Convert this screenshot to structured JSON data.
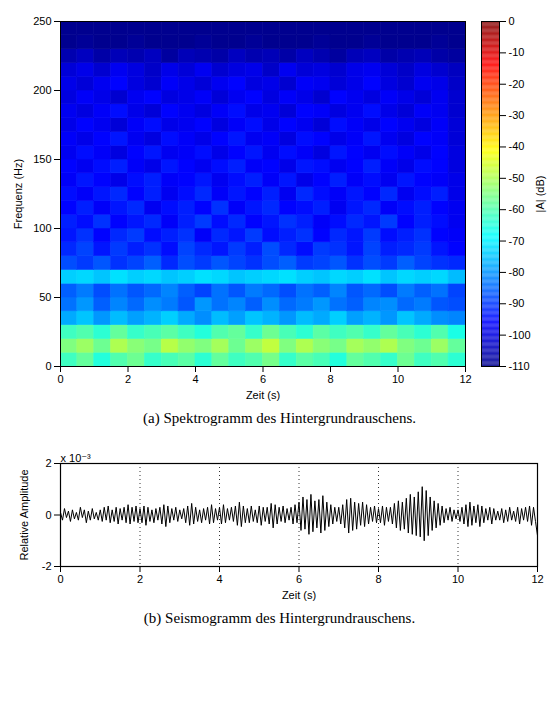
{
  "chart_data": [
    {
      "type": "heatmap",
      "title": "(a) Spektrogramm des Hintergrundrauschens.",
      "x_label": "Zeit (s)",
      "y_label": "Frequenz (Hz)",
      "xlim": [
        0,
        12
      ],
      "xticks": [
        0,
        2,
        4,
        6,
        8,
        10,
        12
      ],
      "ylim": [
        0,
        250
      ],
      "yticks": [
        0,
        50,
        100,
        150,
        200,
        250
      ],
      "x_bins": [
        0,
        0.5,
        1,
        1.5,
        2,
        2.5,
        3,
        3.5,
        4,
        4.5,
        5,
        5.5,
        6,
        6.5,
        7,
        7.5,
        8,
        8.5,
        9,
        9.5,
        10,
        10.5,
        11,
        11.5,
        12
      ],
      "y_bins": [
        0,
        10,
        20,
        30,
        40,
        50,
        60,
        70,
        80,
        90,
        100,
        110,
        120,
        130,
        140,
        150,
        160,
        170,
        180,
        190,
        200,
        210,
        220,
        230,
        240,
        250
      ],
      "cells": [
        [
          -62,
          -58,
          -65,
          -60,
          -57,
          -63,
          -61,
          -59,
          -64,
          -58,
          -62,
          -60,
          -56,
          -63,
          -59,
          -61,
          -65,
          -58,
          -60,
          -63,
          -57,
          -62,
          -60,
          -64
        ],
        [
          -55,
          -52,
          -57,
          -50,
          -54,
          -56,
          -49,
          -53,
          -55,
          -51,
          -57,
          -52,
          -48,
          -55,
          -50,
          -54,
          -56,
          -51,
          -53,
          -50,
          -55,
          -57,
          -52,
          -58
        ],
        [
          -62,
          -60,
          -64,
          -58,
          -63,
          -61,
          -59,
          -62,
          -65,
          -60,
          -58,
          -63,
          -57,
          -61,
          -64,
          -59,
          -62,
          -60,
          -63,
          -58,
          -61,
          -64,
          -60,
          -66
        ],
        [
          -78,
          -75,
          -80,
          -76,
          -79,
          -77,
          -74,
          -78,
          -81,
          -76,
          -79,
          -75,
          -77,
          -80,
          -76,
          -78,
          -74,
          -79,
          -77,
          -80,
          -75,
          -78,
          -81,
          -82
        ],
        [
          -84,
          -80,
          -86,
          -82,
          -85,
          -81,
          -83,
          -87,
          -80,
          -84,
          -82,
          -86,
          -81,
          -85,
          -83,
          -80,
          -84,
          -86,
          -82,
          -81,
          -85,
          -83,
          -87,
          -88
        ],
        [
          -86,
          -83,
          -88,
          -84,
          -87,
          -85,
          -82,
          -86,
          -89,
          -84,
          -87,
          -83,
          -85,
          -88,
          -84,
          -86,
          -82,
          -87,
          -85,
          -88,
          -83,
          -86,
          -84,
          -89
        ],
        [
          -74,
          -73,
          -75,
          -72,
          -74,
          -73,
          -75,
          -74,
          -72,
          -73,
          -75,
          -74,
          -73,
          -72,
          -74,
          -75,
          -73,
          -74,
          -72,
          -75,
          -73,
          -74,
          -73,
          -76
        ],
        [
          -88,
          -90,
          -87,
          -91,
          -89,
          -86,
          -92,
          -88,
          -90,
          -87,
          -89,
          -91,
          -88,
          -86,
          -90,
          -89,
          -87,
          -91,
          -88,
          -90,
          -86,
          -89,
          -91,
          -92
        ],
        [
          -92,
          -89,
          -94,
          -90,
          -93,
          -91,
          -95,
          -89,
          -92,
          -94,
          -90,
          -93,
          -88,
          -92,
          -95,
          -90,
          -91,
          -94,
          -89,
          -93,
          -92,
          -90,
          -94,
          -96
        ],
        [
          -94,
          -91,
          -96,
          -92,
          -90,
          -95,
          -93,
          -91,
          -97,
          -92,
          -94,
          -90,
          -95,
          -93,
          -91,
          -96,
          -92,
          -94,
          -90,
          -95,
          -93,
          -91,
          -96,
          -97
        ],
        [
          -93,
          -95,
          -91,
          -96,
          -94,
          -92,
          -97,
          -93,
          -90,
          -95,
          -92,
          -96,
          -94,
          -91,
          -93,
          -97,
          -95,
          -92,
          -94,
          -90,
          -96,
          -93,
          -95,
          -98
        ],
        [
          -96,
          -93,
          -97,
          -94,
          -92,
          -98,
          -95,
          -93,
          -96,
          -91,
          -97,
          -94,
          -92,
          -96,
          -95,
          -93,
          -98,
          -94,
          -92,
          -97,
          -95,
          -93,
          -96,
          -98
        ],
        [
          -95,
          -97,
          -94,
          -92,
          -96,
          -93,
          -98,
          -95,
          -92,
          -97,
          -94,
          -96,
          -93,
          -98,
          -92,
          -95,
          -97,
          -94,
          -96,
          -92,
          -98,
          -95,
          -93,
          -99
        ],
        [
          -97,
          -94,
          -96,
          -99,
          -95,
          -93,
          -97,
          -96,
          -94,
          -98,
          -95,
          -93,
          -97,
          -94,
          -99,
          -96,
          -93,
          -97,
          -95,
          -98,
          -94,
          -96,
          -97,
          -99
        ],
        [
          -96,
          -98,
          -95,
          -93,
          -97,
          -99,
          -94,
          -96,
          -98,
          -95,
          -93,
          -97,
          -96,
          -99,
          -94,
          -95,
          -98,
          -96,
          -93,
          -97,
          -99,
          -95,
          -96,
          -100
        ],
        [
          -98,
          -95,
          -97,
          -100,
          -96,
          -94,
          -98,
          -97,
          -95,
          -99,
          -96,
          -94,
          -98,
          -95,
          -97,
          -100,
          -94,
          -96,
          -98,
          -95,
          -97,
          -99,
          -96,
          -100
        ],
        [
          -97,
          -99,
          -96,
          -94,
          -98,
          -100,
          -95,
          -97,
          -99,
          -96,
          -94,
          -98,
          -97,
          -100,
          -95,
          -96,
          -99,
          -97,
          -94,
          -98,
          -100,
          -96,
          -97,
          -101
        ],
        [
          -99,
          -96,
          -98,
          -101,
          -97,
          -95,
          -99,
          -98,
          -96,
          -100,
          -97,
          -95,
          -99,
          -96,
          -98,
          -101,
          -95,
          -97,
          -99,
          -96,
          -98,
          -100,
          -97,
          -101
        ],
        [
          -98,
          -100,
          -97,
          -95,
          -99,
          -101,
          -96,
          -98,
          -100,
          -97,
          -95,
          -99,
          -98,
          -101,
          -96,
          -97,
          -100,
          -98,
          -95,
          -99,
          -101,
          -97,
          -98,
          -102
        ],
        [
          -100,
          -97,
          -99,
          -102,
          -98,
          -96,
          -100,
          -99,
          -97,
          -101,
          -98,
          -96,
          -100,
          -97,
          -99,
          -102,
          -96,
          -98,
          -100,
          -97,
          -99,
          -101,
          -98,
          -102
        ],
        [
          -99,
          -101,
          -98,
          -96,
          -100,
          -102,
          -97,
          -99,
          -101,
          -98,
          -96,
          -100,
          -99,
          -102,
          -97,
          -98,
          -101,
          -99,
          -96,
          -100,
          -102,
          -98,
          -99,
          -103
        ],
        [
          -101,
          -99,
          -102,
          -98,
          -100,
          -103,
          -99,
          -101,
          -98,
          -102,
          -100,
          -99,
          -103,
          -98,
          -101,
          -100,
          -102,
          -99,
          -98,
          -101,
          -103,
          -100,
          -102,
          -104
        ],
        [
          -106,
          -104,
          -107,
          -105,
          -106,
          -104,
          -108,
          -105,
          -106,
          -107,
          -104,
          -106,
          -105,
          -107,
          -104,
          -106,
          -108,
          -105,
          -104,
          -107,
          -106,
          -105,
          -107,
          -108
        ],
        [
          -110,
          -109,
          -110,
          -110,
          -109,
          -110,
          -110,
          -110,
          -109,
          -110,
          -110,
          -109,
          -110,
          -110,
          -110,
          -109,
          -110,
          -110,
          -109,
          -110,
          -110,
          -110,
          -109,
          -110
        ],
        [
          -110,
          -110,
          -110,
          -110,
          -110,
          -110,
          -110,
          -110,
          -110,
          -110,
          -110,
          -110,
          -110,
          -110,
          -110,
          -110,
          -110,
          -110,
          -110,
          -110,
          -110,
          -110,
          -110,
          -110
        ]
      ],
      "colorbar": {
        "label": "|A| (dB)",
        "range": [
          -110,
          0
        ],
        "ticks": [
          0,
          -10,
          -20,
          -30,
          -40,
          -50,
          -60,
          -70,
          -80,
          -90,
          -100,
          -110
        ]
      }
    },
    {
      "type": "line",
      "title": "(b) Seismogramm des Hintergrundrauschens.",
      "x_label": "Zeit (s)",
      "y_label": "Relative Amplitude",
      "annotation": "x 10⁻³",
      "xlim": [
        0,
        12
      ],
      "xticks": [
        0,
        2,
        4,
        6,
        8,
        10,
        12
      ],
      "ylim": [
        -2,
        2
      ],
      "yticks": [
        -2,
        0,
        2
      ],
      "grid": "x",
      "color": "#000000",
      "x": [
        0,
        0.05,
        0.1,
        0.15,
        0.2,
        0.25,
        0.3,
        0.35,
        0.4,
        0.45,
        0.5,
        0.55,
        0.6,
        0.65,
        0.7,
        0.75,
        0.8,
        0.85,
        0.9,
        0.95,
        1,
        1.05,
        1.1,
        1.15,
        1.2,
        1.25,
        1.3,
        1.35,
        1.4,
        1.45,
        1.5,
        1.55,
        1.6,
        1.65,
        1.7,
        1.75,
        1.8,
        1.85,
        1.9,
        1.95,
        2,
        2.05,
        2.1,
        2.15,
        2.2,
        2.25,
        2.3,
        2.35,
        2.4,
        2.45,
        2.5,
        2.55,
        2.6,
        2.65,
        2.7,
        2.75,
        2.8,
        2.85,
        2.9,
        2.95,
        3,
        3.05,
        3.1,
        3.15,
        3.2,
        3.25,
        3.3,
        3.35,
        3.4,
        3.45,
        3.5,
        3.55,
        3.6,
        3.65,
        3.7,
        3.75,
        3.8,
        3.85,
        3.9,
        3.95,
        4,
        4.05,
        4.1,
        4.15,
        4.2,
        4.25,
        4.3,
        4.35,
        4.4,
        4.45,
        4.5,
        4.55,
        4.6,
        4.65,
        4.7,
        4.75,
        4.8,
        4.85,
        4.9,
        4.95,
        5,
        5.05,
        5.1,
        5.15,
        5.2,
        5.25,
        5.3,
        5.35,
        5.4,
        5.45,
        5.5,
        5.55,
        5.6,
        5.65,
        5.7,
        5.75,
        5.8,
        5.85,
        5.9,
        5.95,
        6,
        6.05,
        6.1,
        6.15,
        6.2,
        6.25,
        6.3,
        6.35,
        6.4,
        6.45,
        6.5,
        6.55,
        6.6,
        6.65,
        6.7,
        6.75,
        6.8,
        6.85,
        6.9,
        6.95,
        7,
        7.05,
        7.1,
        7.15,
        7.2,
        7.25,
        7.3,
        7.35,
        7.4,
        7.45,
        7.5,
        7.55,
        7.6,
        7.65,
        7.7,
        7.75,
        7.8,
        7.85,
        7.9,
        7.95,
        8,
        8.05,
        8.1,
        8.15,
        8.2,
        8.25,
        8.3,
        8.35,
        8.4,
        8.45,
        8.5,
        8.55,
        8.6,
        8.65,
        8.7,
        8.75,
        8.8,
        8.85,
        8.9,
        8.95,
        9,
        9.05,
        9.1,
        9.15,
        9.2,
        9.25,
        9.3,
        9.35,
        9.4,
        9.45,
        9.5,
        9.55,
        9.6,
        9.65,
        9.7,
        9.75,
        9.8,
        9.85,
        9.9,
        9.95,
        10,
        10.05,
        10.1,
        10.15,
        10.2,
        10.25,
        10.3,
        10.35,
        10.4,
        10.45,
        10.5,
        10.55,
        10.6,
        10.65,
        10.7,
        10.75,
        10.8,
        10.85,
        10.9,
        10.95,
        11,
        11.05,
        11.1,
        11.15,
        11.2,
        11.25,
        11.3,
        11.35,
        11.4,
        11.45,
        11.5,
        11.55,
        11.6,
        11.65,
        11.7,
        11.75,
        11.8,
        11.85,
        11.9,
        11.95,
        12
      ],
      "values": [
        0.1,
        -0.2,
        0.25,
        -0.1,
        0.15,
        -0.25,
        0.2,
        -0.15,
        0.1,
        -0.2,
        0.3,
        -0.1,
        0.2,
        -0.3,
        0.15,
        -0.2,
        0.25,
        -0.15,
        0.1,
        -0.2,
        0.2,
        -0.25,
        0.3,
        -0.2,
        0.35,
        -0.3,
        0.2,
        -0.25,
        0.3,
        -0.35,
        0.25,
        -0.2,
        0.3,
        -0.3,
        0.4,
        -0.35,
        0.3,
        -0.25,
        0.35,
        -0.3,
        0.25,
        -0.3,
        0.35,
        -0.4,
        0.3,
        -0.25,
        0.2,
        -0.3,
        0.25,
        -0.2,
        0.3,
        -0.35,
        0.4,
        -0.45,
        0.35,
        -0.3,
        0.25,
        -0.2,
        0.3,
        -0.25,
        0.2,
        -0.15,
        0.25,
        -0.3,
        0.35,
        -0.4,
        0.45,
        -0.35,
        0.3,
        -0.25,
        0.2,
        -0.3,
        0.25,
        -0.2,
        0.3,
        -0.35,
        0.4,
        -0.3,
        0.25,
        -0.2,
        0.3,
        -0.35,
        0.4,
        -0.3,
        0.25,
        -0.2,
        0.3,
        -0.25,
        0.35,
        -0.4,
        0.5,
        -0.45,
        0.35,
        -0.3,
        0.25,
        -0.3,
        0.35,
        -0.25,
        0.2,
        -0.3,
        0.35,
        -0.4,
        0.3,
        -0.25,
        0.3,
        -0.35,
        0.45,
        -0.5,
        0.4,
        -0.35,
        0.3,
        -0.25,
        0.35,
        -0.3,
        0.25,
        -0.2,
        0.3,
        -0.35,
        0.4,
        -0.3,
        0.5,
        -0.6,
        0.7,
        -0.55,
        0.6,
        -0.75,
        0.8,
        -0.65,
        0.55,
        -0.5,
        0.6,
        -0.7,
        0.75,
        -0.6,
        0.5,
        -0.45,
        0.4,
        -0.35,
        0.3,
        -0.25,
        0.3,
        -0.35,
        0.4,
        -0.5,
        0.6,
        -0.7,
        0.65,
        -0.6,
        0.5,
        -0.55,
        0.45,
        -0.4,
        0.5,
        -0.45,
        0.4,
        -0.35,
        0.3,
        -0.25,
        0.35,
        -0.3,
        0.25,
        -0.3,
        0.35,
        -0.4,
        0.3,
        -0.25,
        0.3,
        -0.35,
        0.45,
        -0.5,
        0.55,
        -0.6,
        0.5,
        -0.55,
        0.65,
        -0.7,
        0.8,
        -0.75,
        0.7,
        -0.8,
        0.9,
        -0.85,
        1.1,
        -1.0,
        0.95,
        -0.8,
        0.7,
        -0.6,
        0.55,
        -0.5,
        0.45,
        -0.4,
        0.35,
        -0.3,
        0.25,
        -0.2,
        0.3,
        -0.25,
        0.2,
        -0.15,
        0.2,
        -0.25,
        0.3,
        -0.35,
        0.4,
        -0.45,
        0.5,
        -0.4,
        0.35,
        -0.3,
        0.4,
        -0.45,
        0.35,
        -0.3,
        0.25,
        -0.2,
        0.3,
        -0.35,
        0.25,
        -0.2,
        0.15,
        -0.2,
        0.25,
        -0.3,
        0.2,
        -0.25,
        0.3,
        -0.2,
        0.15,
        -0.25,
        0.3,
        -0.35,
        0.25,
        -0.2,
        0.3,
        -0.25,
        0.35,
        -0.4,
        0.3,
        -0.25,
        -0.8
      ]
    }
  ]
}
